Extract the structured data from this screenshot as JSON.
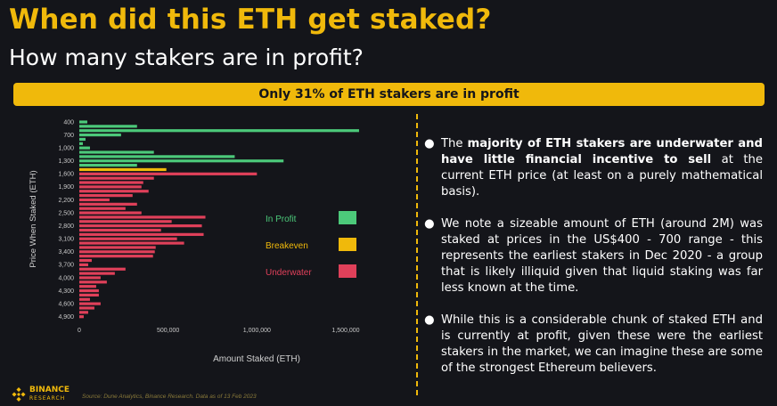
{
  "header": {
    "title": "When did this ETH get staked?",
    "subtitle": "How many stakers are in profit?",
    "banner": "Only 31% of ETH stakers are in profit"
  },
  "colors": {
    "accent": "#f0b90b",
    "in_profit": "#4cc97a",
    "breakeven": "#f0b90b",
    "underwater": "#e0405a",
    "background": "#14151a"
  },
  "chart_data": {
    "type": "bar",
    "orientation": "horizontal",
    "xlabel": "Amount Staked (ETH)",
    "ylabel": "Price When Staked (ETH)",
    "xlim": [
      0,
      1500000
    ],
    "xticks": [
      {
        "value": 0,
        "label": "0"
      },
      {
        "value": 500000,
        "label": "500,000"
      },
      {
        "value": 1000000,
        "label": "1,000,000"
      },
      {
        "value": 1500000,
        "label": "1,500,000"
      }
    ],
    "grid": false,
    "legend": [
      {
        "label": "In Profit",
        "color": "#4cc97a"
      },
      {
        "label": "Breakeven",
        "color": "#f0b90b"
      },
      {
        "label": "Underwater",
        "color": "#e0405a"
      }
    ],
    "legend_position": "right",
    "categories": [
      "400",
      "500",
      "600",
      "700",
      "800",
      "900",
      "1,000",
      "1,100",
      "1,200",
      "1,300",
      "1,400",
      "1,500",
      "1,600",
      "1,700",
      "1,800",
      "1,900",
      "2,000",
      "2,100",
      "2,200",
      "2,300",
      "2,400",
      "2,500",
      "2,600",
      "2,700",
      "2,800",
      "2,900",
      "3,000",
      "3,100",
      "3,200",
      "3,300",
      "3,400",
      "3,500",
      "3,600",
      "3,700",
      "3,800",
      "3,900",
      "4,000",
      "4,100",
      "4,200",
      "4,300",
      "4,400",
      "4,500",
      "4,600",
      "4,700",
      "4,800",
      "4,900"
    ],
    "category_labels_shown": [
      "400",
      "700",
      "1,000",
      "1,300",
      "1,600",
      "1,900",
      "2,200",
      "2,500",
      "2,800",
      "3,100",
      "3,400",
      "3,700",
      "4,000",
      "4,300",
      "4,600",
      "4,900"
    ],
    "values": [
      45000,
      325000,
      1575000,
      235000,
      35000,
      20000,
      60000,
      420000,
      875000,
      1150000,
      325000,
      490000,
      1000000,
      420000,
      360000,
      350000,
      390000,
      300000,
      170000,
      325000,
      260000,
      350000,
      710000,
      520000,
      690000,
      460000,
      700000,
      550000,
      590000,
      430000,
      425000,
      415000,
      70000,
      50000,
      260000,
      200000,
      120000,
      155000,
      95000,
      110000,
      110000,
      60000,
      120000,
      85000,
      50000,
      25000
    ],
    "status": [
      "profit",
      "profit",
      "profit",
      "profit",
      "profit",
      "profit",
      "profit",
      "profit",
      "profit",
      "profit",
      "profit",
      "breakeven",
      "underwater",
      "underwater",
      "underwater",
      "underwater",
      "underwater",
      "underwater",
      "underwater",
      "underwater",
      "underwater",
      "underwater",
      "underwater",
      "underwater",
      "underwater",
      "underwater",
      "underwater",
      "underwater",
      "underwater",
      "underwater",
      "underwater",
      "underwater",
      "underwater",
      "underwater",
      "underwater",
      "underwater",
      "underwater",
      "underwater",
      "underwater",
      "underwater",
      "underwater",
      "underwater",
      "underwater",
      "underwater",
      "underwater",
      "underwater"
    ]
  },
  "bullets": [
    {
      "prefix": "The ",
      "bold": "majority of ETH stakers are underwater and have little financial incentive to sell",
      "suffix": " at the current ETH price (at least on a purely mathematical basis)."
    },
    {
      "prefix": "We note a sizeable amount of ETH (around 2M) was staked at prices in the US$400 - 700 range - this represents the earliest stakers in Dec 2020 - a group that is likely illiquid given that liquid staking was far less known at the time.",
      "bold": "",
      "suffix": ""
    },
    {
      "prefix": "While this is a considerable chunk of staked ETH and is currently at profit, given these were the earliest stakers in the market, we can imagine these are some of the strongest Ethereum believers.",
      "bold": "",
      "suffix": ""
    }
  ],
  "footer": {
    "logo_line1": "BINANCE",
    "logo_line2": "RESEARCH",
    "source": "Source: Dune Analytics, Binance Research. Data as of 13 Feb 2023"
  }
}
